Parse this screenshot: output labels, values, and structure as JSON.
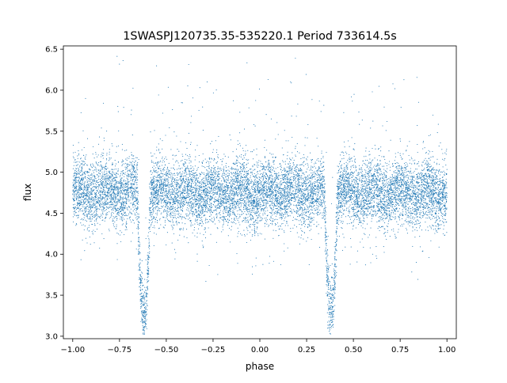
{
  "chart_data": {
    "type": "scatter",
    "title": "1SWASPJ120735.35-535220.1 Period 733614.5s",
    "xlabel": "phase",
    "ylabel": "flux",
    "xlim": [
      -1.05,
      1.05
    ],
    "ylim": [
      2.97,
      6.54
    ],
    "xticks": [
      -1.0,
      -0.75,
      -0.5,
      -0.25,
      0.0,
      0.25,
      0.5,
      0.75,
      1.0
    ],
    "xtick_labels": [
      "−1.00",
      "−0.75",
      "−0.50",
      "−0.25",
      "0.00",
      "0.25",
      "0.50",
      "0.75",
      "1.00"
    ],
    "yticks": [
      3.0,
      3.5,
      4.0,
      4.5,
      5.0,
      5.5,
      6.0,
      6.5
    ],
    "ytick_labels": [
      "3.0",
      "3.5",
      "4.0",
      "4.5",
      "5.0",
      "5.5",
      "6.0",
      "6.5"
    ],
    "grid": false,
    "point_color": "#1f77b4",
    "series": [
      {
        "phase_range": [
          -1.0,
          1.0
        ],
        "baseline_flux": 4.75,
        "scatter_sigma": 0.2,
        "eclipses": [
          {
            "phase": -0.62,
            "min_flux": 3.3
          },
          {
            "phase": 0.38,
            "min_flux": 3.3
          }
        ],
        "n_points": 12000
      }
    ]
  }
}
